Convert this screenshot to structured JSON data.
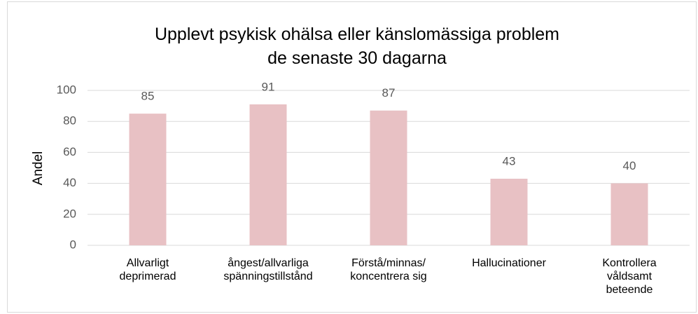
{
  "chart_data": {
    "type": "bar",
    "title": "Upplevt psykisk ohälsa eller känslomässiga problem\nde senaste 30 dagarna",
    "y_label": "Andel",
    "categories": [
      "Allvarligt\ndeprimerad",
      "ångest/allvarliga\nspänningstillstånd",
      "Förstå/minnas/\nkoncentrera sig",
      "Hallucinationer",
      "Kontrollera\nvåldsamt\nbeteende"
    ],
    "values": [
      85,
      91,
      87,
      43,
      40
    ],
    "color": "#e8c1c4",
    "ylim": [
      0,
      100
    ],
    "yticks": [
      0,
      20,
      40,
      60,
      80,
      100
    ],
    "grid": true
  }
}
